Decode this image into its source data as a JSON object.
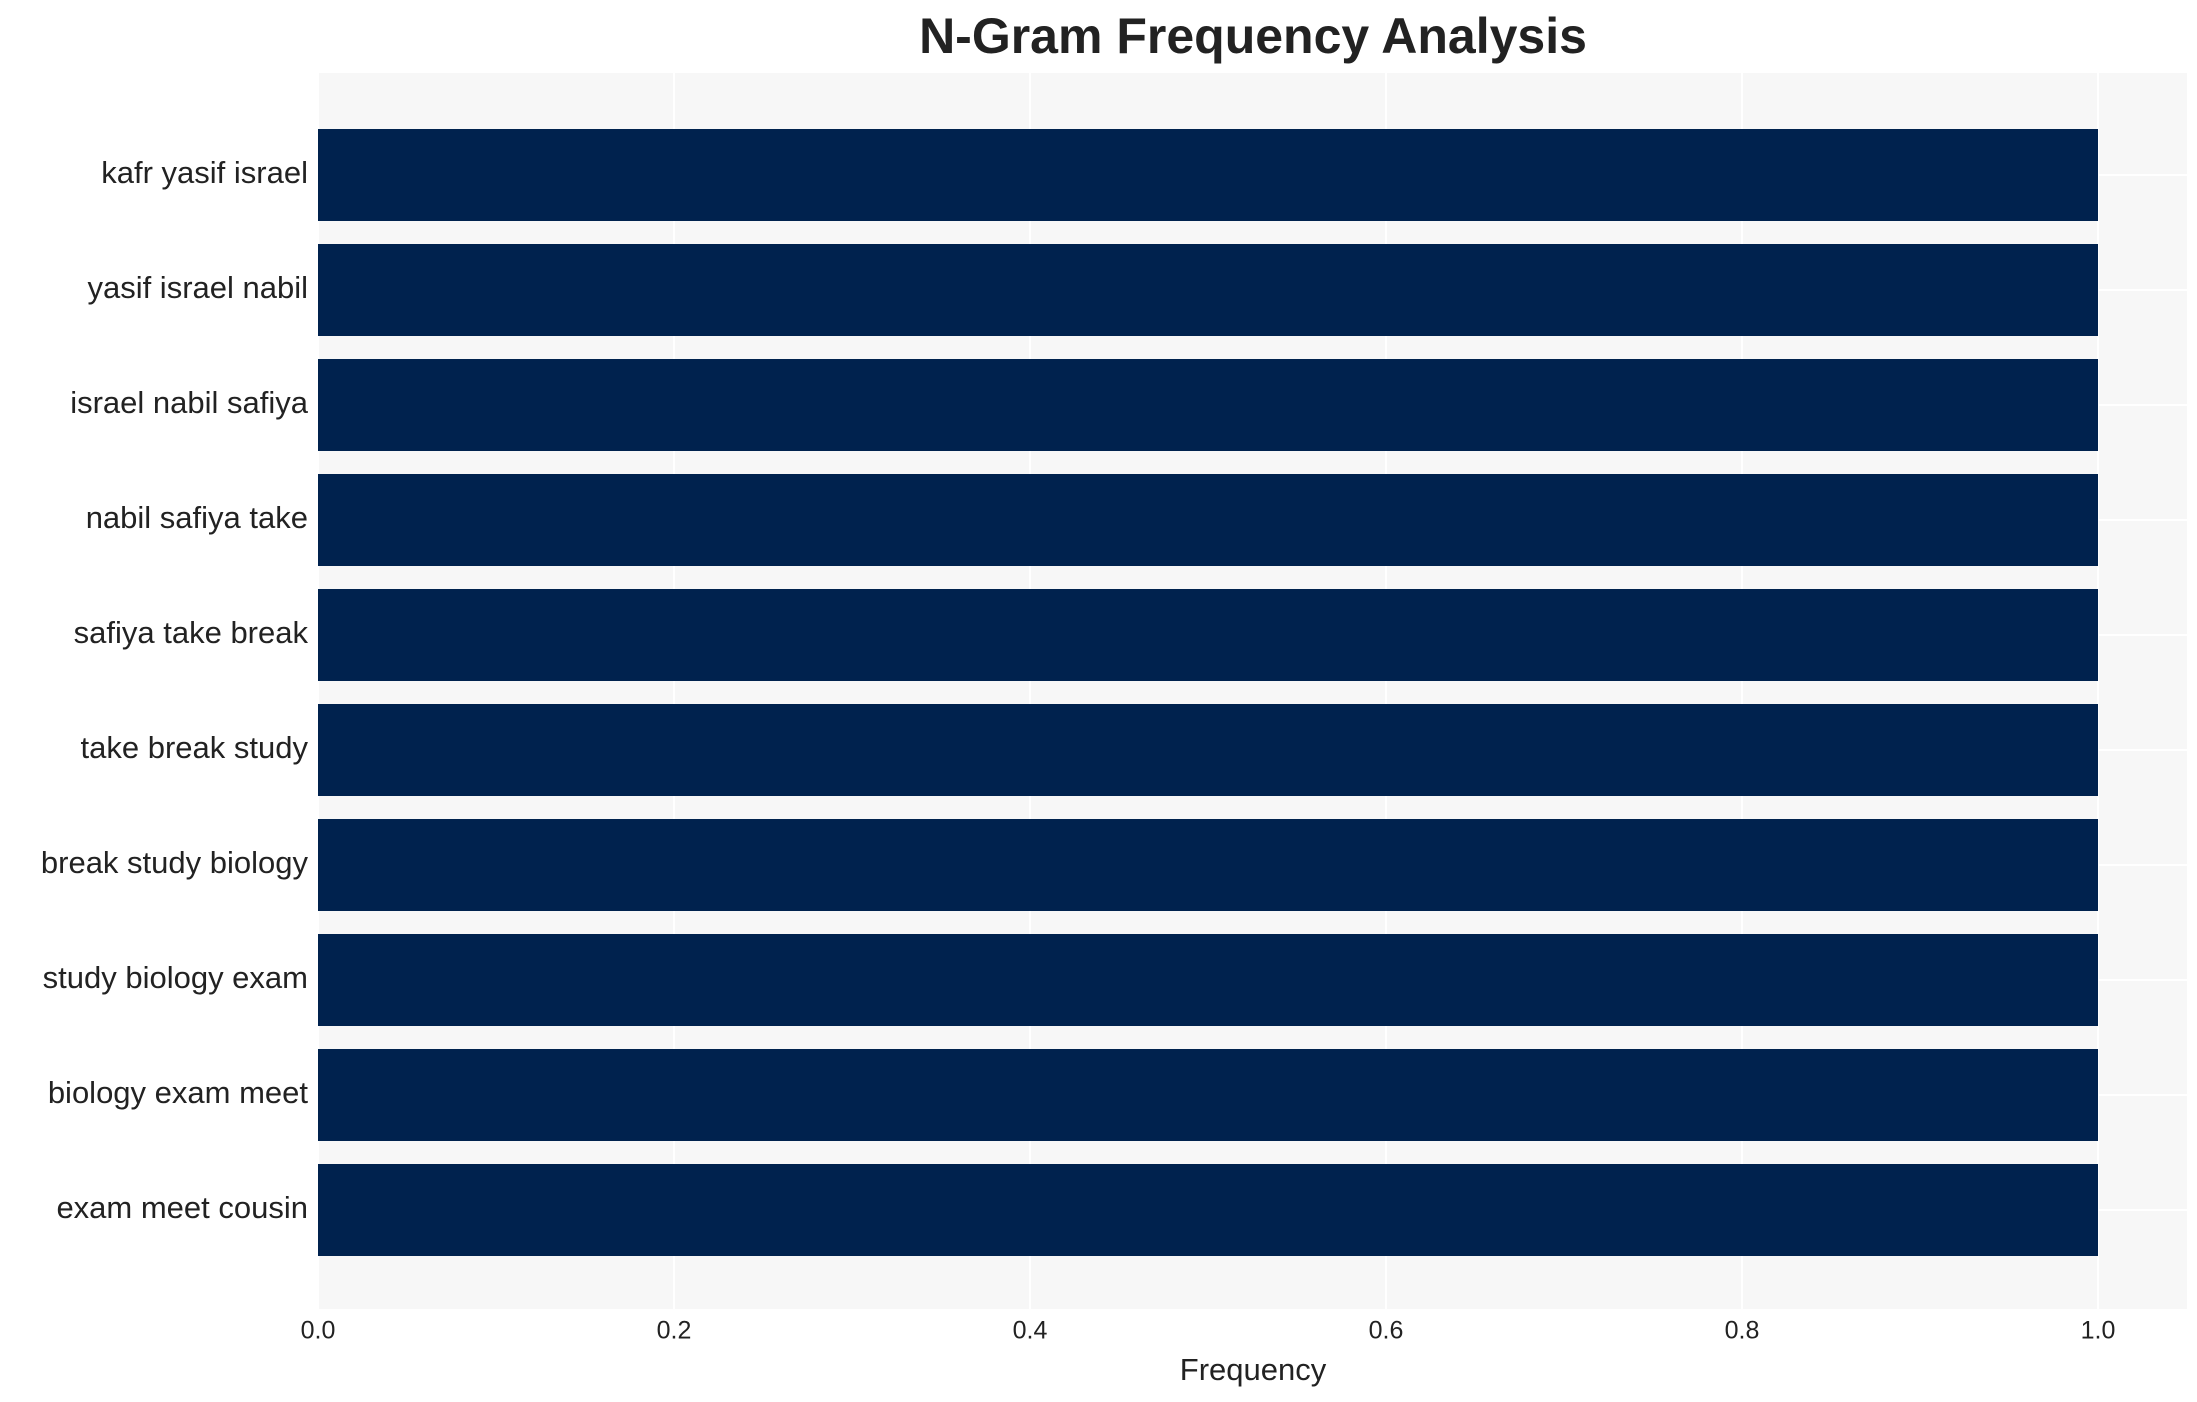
{
  "chart_data": {
    "type": "barh",
    "title": "N-Gram Frequency Analysis",
    "x_label": "Frequency",
    "categories": [
      "kafr yasif israel",
      "yasif israel nabil",
      "israel nabil safiya",
      "nabil safiya take",
      "safiya take break",
      "take break study",
      "break study biology",
      "study biology exam",
      "biology exam meet",
      "exam meet cousin"
    ],
    "values": [
      1,
      1,
      1,
      1,
      1,
      1,
      1,
      1,
      1,
      1
    ],
    "color": "#00224e",
    "xlim": [
      0,
      1.05
    ],
    "xticks": [
      {
        "value": 0,
        "label": "0.0"
      },
      0.2,
      0.4,
      0.6,
      0.8,
      {
        "value": 1,
        "label": "1.0"
      }
    ],
    "grid": true
  }
}
